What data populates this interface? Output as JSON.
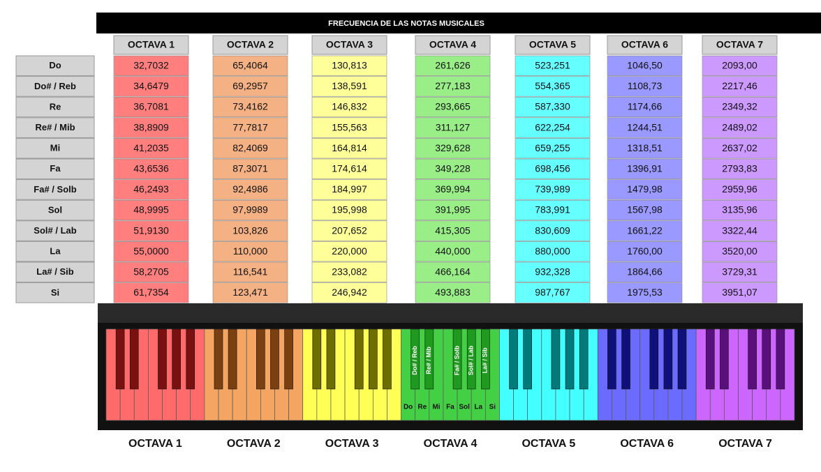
{
  "title": "FRECUENCIA DE LAS NOTAS MUSICALES",
  "octaves": [
    "OCTAVA 1",
    "OCTAVA 2",
    "OCTAVA 3",
    "OCTAVA 4",
    "OCTAVA 5",
    "OCTAVA 6",
    "OCTAVA 7"
  ],
  "notes": [
    "Do",
    "Do# / Reb",
    "Re",
    "Re# / Mib",
    "Mi",
    "Fa",
    "Fa# / Solb",
    "Sol",
    "Sol# / Lab",
    "La",
    "La# / Sib",
    "Si"
  ],
  "table": {
    "rows": [
      [
        "32,7032",
        "65,4064",
        "130,813",
        "261,626",
        "523,251",
        "1046,50",
        "2093,00"
      ],
      [
        "34,6479",
        "69,2957",
        "138,591",
        "277,183",
        "554,365",
        "1108,73",
        "2217,46"
      ],
      [
        "36,7081",
        "73,4162",
        "146,832",
        "293,665",
        "587,330",
        "1174,66",
        "2349,32"
      ],
      [
        "38,8909",
        "77,7817",
        "155,563",
        "311,127",
        "622,254",
        "1244,51",
        "2489,02"
      ],
      [
        "41,2035",
        "82,4069",
        "164,814",
        "329,628",
        "659,255",
        "1318,51",
        "2637,02"
      ],
      [
        "43,6536",
        "87,3071",
        "174,614",
        "349,228",
        "698,456",
        "1396,91",
        "2793,83"
      ],
      [
        "46,2493",
        "92,4986",
        "184,997",
        "369,994",
        "739,989",
        "1479,98",
        "2959,96"
      ],
      [
        "48,9995",
        "97,9989",
        "195,998",
        "391,995",
        "783,991",
        "1567,98",
        "3135,96"
      ],
      [
        "51,9130",
        "103,826",
        "207,652",
        "415,305",
        "830,609",
        "1661,22",
        "3322,44"
      ],
      [
        "55,0000",
        "110,000",
        "220,000",
        "440,000",
        "880,000",
        "1760,00",
        "3520,00"
      ],
      [
        "58,2705",
        "116,541",
        "233,082",
        "466,164",
        "932,328",
        "1864,66",
        "3729,31"
      ],
      [
        "61,7354",
        "123,471",
        "246,942",
        "493,883",
        "987,767",
        "1975,53",
        "3951,07"
      ]
    ]
  },
  "keyboard": {
    "black_keys": [
      "Do# / Reb",
      "Re# / Mib",
      "Fa# / Solb",
      "Sol# / Lab",
      "La# / Sib"
    ],
    "white_keys": [
      "Do",
      "Re",
      "Mi",
      "Fa",
      "Sol",
      "La",
      "Si"
    ]
  }
}
